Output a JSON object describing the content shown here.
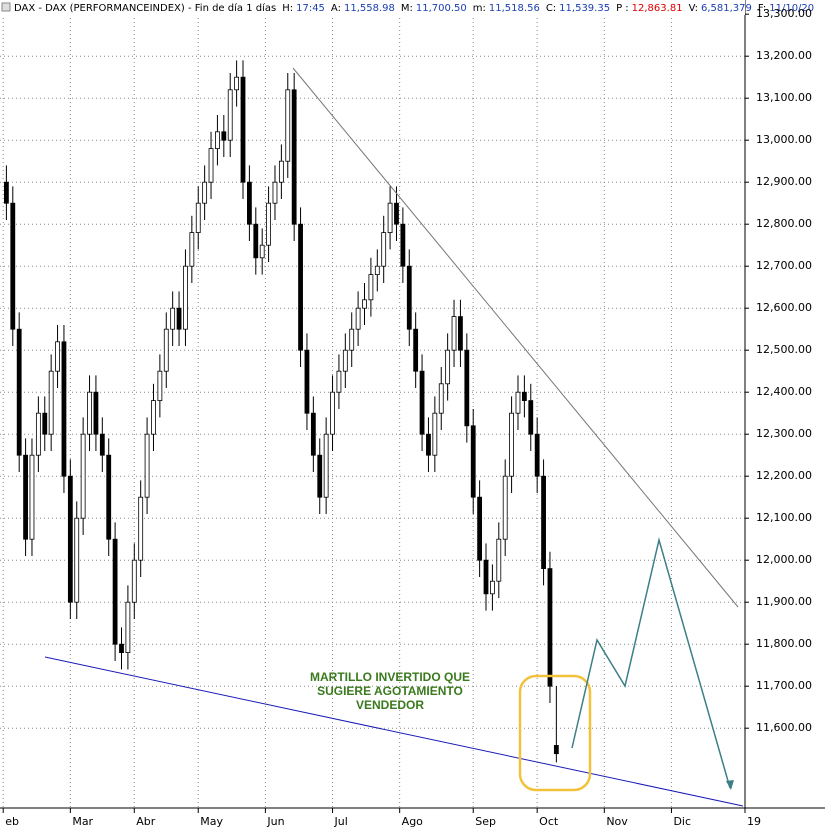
{
  "chart_data": {
    "type": "candlestick",
    "header": {
      "title": "DAX - DAX (PERFORMANCEINDEX) - Fin de día 1 días",
      "fields": [
        {
          "label": "H:",
          "value": "17:45"
        },
        {
          "label": "A:",
          "value": "11,558.98"
        },
        {
          "label": "M:",
          "value": "11,700.50"
        },
        {
          "label": "m:",
          "value": "11,518.56"
        },
        {
          "label": "C:",
          "value": "11,539.35"
        },
        {
          "label": "P :",
          "value": "12,863.81"
        },
        {
          "label": "V:",
          "value": "6,581,379"
        },
        {
          "label": "F:",
          "value": "11/10/20"
        }
      ]
    },
    "annotations": [
      "MARTILLO INVERTIDO QUE",
      "SUGIERE AGOTAMIENTO",
      "VENDEDOR"
    ],
    "x": [
      0,
      2,
      4,
      6,
      8,
      10,
      12,
      14,
      16,
      18,
      20,
      22,
      24,
      26,
      28,
      30,
      32,
      34,
      36,
      38,
      40,
      42,
      44,
      46,
      48,
      50,
      52,
      54,
      56,
      58,
      60,
      62,
      64,
      66,
      68,
      70,
      72,
      74,
      76,
      78,
      80,
      82,
      84,
      86,
      88,
      90,
      92,
      94,
      96,
      98,
      100,
      102,
      104,
      106,
      108,
      110,
      112,
      114,
      116,
      118,
      120,
      122,
      124,
      126,
      128,
      130,
      132,
      134,
      136,
      138,
      140,
      142,
      144,
      146,
      148,
      150,
      152,
      154,
      156,
      158,
      160,
      162,
      164,
      166,
      168,
      170,
      172
    ],
    "open": [
      12900,
      12850,
      12550,
      12250,
      12050,
      12250,
      12350,
      12300,
      12450,
      12520,
      12200,
      11900,
      12100,
      12300,
      12400,
      12300,
      12250,
      12050,
      11800,
      11780,
      11900,
      12000,
      12150,
      12300,
      12380,
      12450,
      12550,
      12600,
      12550,
      12700,
      12780,
      12850,
      12900,
      12980,
      13020,
      13000,
      13120,
      13150,
      12900,
      12800,
      12720,
      12750,
      12850,
      12900,
      12950,
      13120,
      12800,
      12500,
      12350,
      12250,
      12150,
      12300,
      12400,
      12450,
      12500,
      12550,
      12600,
      12620,
      12680,
      12700,
      12780,
      12850,
      12800,
      12700,
      12550,
      12450,
      12300,
      12250,
      12350,
      12420,
      12500,
      12580,
      12500,
      12320,
      12150,
      12000,
      11920,
      11950,
      12050,
      12200,
      12350,
      12400,
      12380,
      12300,
      12200,
      11980,
      11558.98
    ],
    "high": [
      12940,
      12890,
      12590,
      12290,
      12290,
      12390,
      12390,
      12490,
      12560,
      12560,
      12240,
      12140,
      12340,
      12440,
      12440,
      12340,
      12290,
      12090,
      11840,
      11940,
      12040,
      12190,
      12340,
      12420,
      12490,
      12590,
      12640,
      12640,
      12740,
      12820,
      12890,
      12940,
      13020,
      13060,
      13060,
      13160,
      13190,
      13190,
      12940,
      12840,
      12790,
      12890,
      12940,
      12990,
      13160,
      13160,
      12840,
      12540,
      12390,
      12290,
      12340,
      12440,
      12490,
      12540,
      12590,
      12640,
      12660,
      12720,
      12740,
      12820,
      12890,
      12890,
      12840,
      12740,
      12590,
      12490,
      12340,
      12390,
      12460,
      12540,
      12620,
      12620,
      12540,
      12360,
      12190,
      12040,
      11990,
      12090,
      12240,
      12390,
      12440,
      12440,
      12420,
      12340,
      12240,
      12020,
      11700.5
    ],
    "low": [
      12810,
      12510,
      12210,
      12010,
      12010,
      12210,
      12260,
      12260,
      12410,
      12160,
      11860,
      11860,
      12060,
      12260,
      12260,
      12210,
      12010,
      11760,
      11740,
      11740,
      11860,
      11960,
      12110,
      12260,
      12340,
      12410,
      12510,
      12510,
      12510,
      12660,
      12740,
      12810,
      12860,
      12940,
      12960,
      12960,
      13080,
      12860,
      12760,
      12680,
      12680,
      12710,
      12810,
      12860,
      12910,
      12760,
      12460,
      12310,
      12210,
      12110,
      12110,
      12260,
      12360,
      12410,
      12460,
      12510,
      12560,
      12580,
      12640,
      12660,
      12740,
      12760,
      12660,
      12510,
      12410,
      12260,
      12210,
      12210,
      12310,
      12380,
      12460,
      12460,
      12280,
      12110,
      11960,
      11880,
      11880,
      11910,
      12010,
      12160,
      12310,
      12340,
      12260,
      12160,
      11940,
      11660,
      11518.56
    ],
    "close": [
      12850,
      12550,
      12250,
      12050,
      12250,
      12350,
      12300,
      12450,
      12520,
      12200,
      11900,
      12100,
      12300,
      12400,
      12300,
      12250,
      12050,
      11800,
      11780,
      11900,
      12000,
      12150,
      12300,
      12380,
      12450,
      12550,
      12600,
      12550,
      12700,
      12780,
      12850,
      12900,
      12980,
      13020,
      13000,
      13120,
      13150,
      12900,
      12800,
      12720,
      12750,
      12850,
      12900,
      12950,
      13120,
      12800,
      12500,
      12350,
      12250,
      12150,
      12300,
      12400,
      12450,
      12500,
      12550,
      12600,
      12620,
      12680,
      12700,
      12780,
      12850,
      12800,
      12700,
      12550,
      12450,
      12300,
      12250,
      12350,
      12420,
      12500,
      12580,
      12500,
      12320,
      12150,
      12000,
      11920,
      11950,
      12050,
      12200,
      12350,
      12400,
      12380,
      12300,
      12200,
      11980,
      11700,
      11539.35
    ],
    "color": "#000000",
    "xlim": [
      -2,
      231
    ],
    "xticks": [
      {
        "value": -1,
        "label": "eb"
      },
      {
        "value": 20,
        "label": "Mar"
      },
      {
        "value": 40,
        "label": "Abr"
      },
      {
        "value": 60,
        "label": "May"
      },
      {
        "value": 81,
        "label": "Jun"
      },
      {
        "value": 102,
        "label": "Jul"
      },
      {
        "value": 123,
        "label": "Ago"
      },
      {
        "value": 146,
        "label": "Sep"
      },
      {
        "value": 166,
        "label": "Oct"
      },
      {
        "value": 187,
        "label": "Nov"
      },
      {
        "value": 208,
        "label": "Dic"
      },
      {
        "value": 231,
        "label": "19"
      }
    ],
    "ylim": [
      11410,
      13310
    ],
    "yticks": [
      {
        "value": 11600,
        "label": "11,600.00"
      },
      {
        "value": 11700,
        "label": "11,700.00"
      },
      {
        "value": 11800,
        "label": "11,800.00"
      },
      {
        "value": 11900,
        "label": "11,900.00"
      },
      {
        "value": 12000,
        "label": "12,000.00"
      },
      {
        "value": 12100,
        "label": "12,100.00"
      },
      {
        "value": 12200,
        "label": "12,200.00"
      },
      {
        "value": 12300,
        "label": "12,300.00"
      },
      {
        "value": 12400,
        "label": "12,400.00"
      },
      {
        "value": 12500,
        "label": "12,500.00"
      },
      {
        "value": 12600,
        "label": "12,600.00"
      },
      {
        "value": 12700,
        "label": "12,700.00"
      },
      {
        "value": 12800,
        "label": "12,800.00"
      },
      {
        "value": 12900,
        "label": "12,900.00"
      },
      {
        "value": 13000,
        "label": "13,000.00"
      },
      {
        "value": 13100,
        "label": "13,100.00"
      },
      {
        "value": 13200,
        "label": "13,200.00"
      },
      {
        "value": 13300,
        "label": "13,300.00"
      }
    ],
    "grid": true
  }
}
